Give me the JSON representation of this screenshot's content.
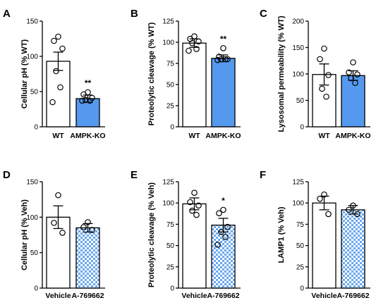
{
  "colors": {
    "wt": "#ffffff",
    "ko": "#5599ee",
    "check_a": "#ffffff",
    "check_b": "#6aa8ee",
    "stroke": "#000000"
  },
  "chart_data": [
    {
      "letter": "A",
      "type": "bar",
      "categories": [
        "WT",
        "AMPK-KO"
      ],
      "ylabel": "Cellular pH (% WT)",
      "ylim": [
        0,
        150
      ],
      "yticks": [
        "0",
        "50",
        "100",
        "150"
      ],
      "values": [
        93,
        40
      ],
      "sem": [
        13,
        5
      ],
      "points": [
        [
          128,
          122,
          111,
          79,
          56,
          35
        ],
        [
          49,
          46,
          41,
          38,
          37,
          37
        ]
      ],
      "fills": [
        "wt",
        "ko"
      ],
      "significance": "**"
    },
    {
      "letter": "B",
      "type": "bar",
      "categories": [
        "WT",
        "AMPK-KO"
      ],
      "ylabel": "Proteolytic cleavage (% WT)",
      "ylim": [
        0,
        125
      ],
      "yticks": [
        "0",
        "25",
        "50",
        "75",
        "100",
        "125"
      ],
      "values": [
        99,
        81
      ],
      "sem": [
        5,
        4
      ],
      "points": [
        [
          107,
          104,
          101,
          99,
          92,
          90
        ],
        [
          93,
          83,
          80,
          80,
          80,
          79
        ]
      ],
      "fills": [
        "wt",
        "ko"
      ],
      "significance": "**"
    },
    {
      "letter": "C",
      "type": "bar",
      "categories": [
        "WT",
        "AMPK-KO"
      ],
      "ylabel": "Lysosomal permeability (% WT)",
      "ylim": [
        0,
        200
      ],
      "yticks": [
        "0",
        "50",
        "100",
        "150",
        "200"
      ],
      "values": [
        99,
        97
      ],
      "sem": [
        20,
        9
      ],
      "points": [
        [
          148,
          128,
          98,
          72,
          57
        ],
        [
          122,
          103,
          99,
          92,
          83
        ]
      ],
      "fills": [
        "wt",
        "ko"
      ],
      "significance": ""
    },
    {
      "letter": "D",
      "type": "bar",
      "categories": [
        "Vehicle",
        "A-769662"
      ],
      "ylabel": "Cellular pH (% Veh)",
      "ylim": [
        0,
        150
      ],
      "yticks": [
        "0",
        "50",
        "100",
        "150"
      ],
      "values": [
        100,
        85
      ],
      "sem": [
        16,
        6
      ],
      "points": [
        [
          131,
          92,
          78
        ],
        [
          93,
          86,
          82
        ]
      ],
      "fills": [
        "wt",
        "check"
      ],
      "significance": ""
    },
    {
      "letter": "E",
      "type": "bar",
      "categories": [
        "Vehicle",
        "A-769662"
      ],
      "ylabel": "Proteolytic cleavage (% Veh)",
      "ylim": [
        0,
        125
      ],
      "yticks": [
        "0",
        "25",
        "50",
        "75",
        "100",
        "125"
      ],
      "values": [
        99,
        74
      ],
      "sem": [
        7,
        8
      ],
      "points": [
        [
          112,
          101,
          97,
          91,
          86
        ],
        [
          92,
          88,
          72,
          66,
          60,
          51
        ]
      ],
      "fills": [
        "wt",
        "check"
      ],
      "significance": "*"
    },
    {
      "letter": "F",
      "type": "bar",
      "categories": [
        "Vehicle",
        "A-769662"
      ],
      "ylabel": "LAMP1 (% Veh)",
      "ylim": [
        0,
        125
      ],
      "yticks": [
        "0",
        "25",
        "50",
        "75",
        "100",
        "125"
      ],
      "values": [
        100,
        92
      ],
      "sem": [
        8,
        5
      ],
      "points": [
        [
          110,
          105,
          87
        ],
        [
          97,
          92,
          87
        ]
      ],
      "fills": [
        "wt",
        "check"
      ],
      "significance": ""
    }
  ]
}
